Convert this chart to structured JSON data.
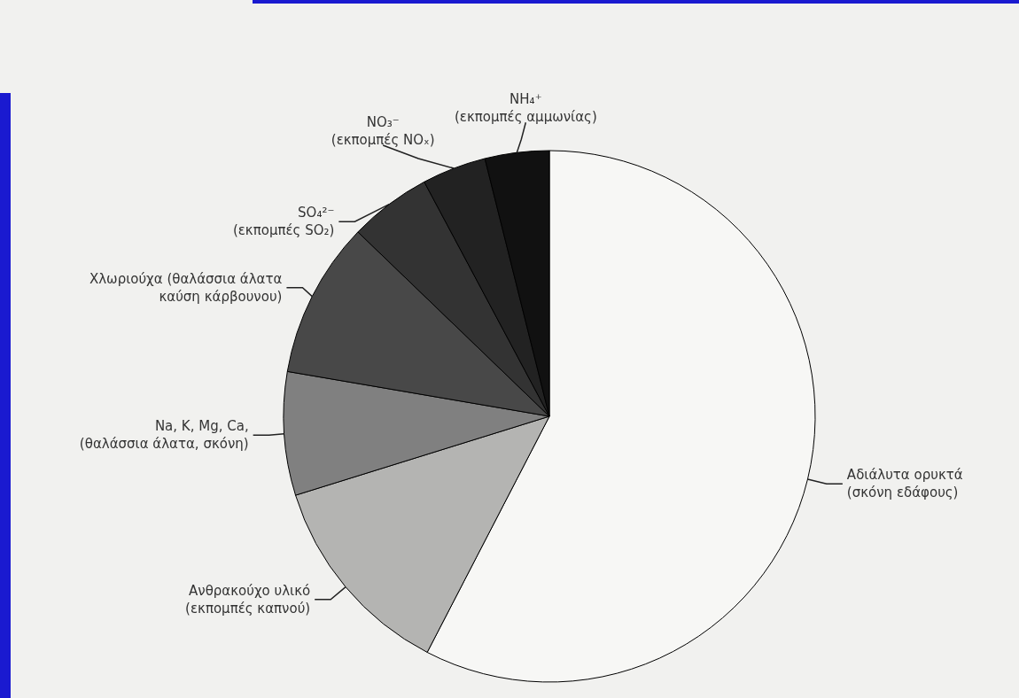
{
  "chart_data": {
    "type": "pie",
    "categories": [
      "Αδιάλυτα ορυκτά\n(σκόνη εδάφους)",
      "Ανθρακούχο υλικό\n(εκπομπές καπνού)",
      "Na, K, Mg, Ca,\n(θαλάσσια άλατα, σκόνη)",
      "Χλωριούχα (θαλάσσια άλατα\nκαύση κάρβουνου)",
      "SO₄²⁻\n(εκπομπές SO₂)",
      "NO₃⁻\n(εκπομπές NOₓ)",
      "NH₄⁺\n(εκπομπές αμμωνίας)"
    ],
    "values": [
      57.6,
      12.6,
      7.5,
      9.5,
      5.0,
      3.9,
      3.9
    ],
    "colors": [
      "#f7f7f5",
      "#b4b4b2",
      "#808080",
      "#484848",
      "#333333",
      "#222222",
      "#111111"
    ],
    "legend": false
  }
}
